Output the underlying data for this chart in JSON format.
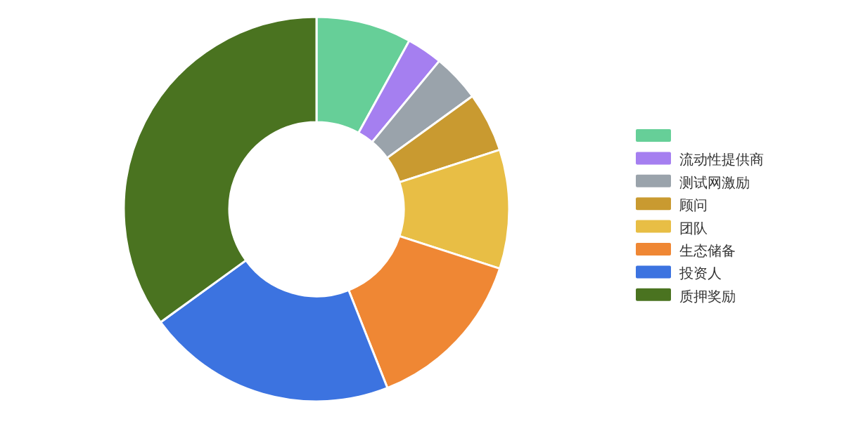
{
  "chart_data": {
    "type": "donut",
    "categories": [
      null,
      "流动性提供商",
      "测试网激励",
      "顾问",
      "团队",
      "生态储备",
      "投资人",
      "质押奖励"
    ],
    "values": [
      8,
      3,
      4,
      5,
      10,
      14,
      21,
      35
    ],
    "colors": [
      "#66cf98",
      "#a57ff0",
      "#9aa3ab",
      "#c99a30",
      "#e8be45",
      "#ef8734",
      "#3c73e0",
      "#4a7320"
    ],
    "legend": "right"
  }
}
